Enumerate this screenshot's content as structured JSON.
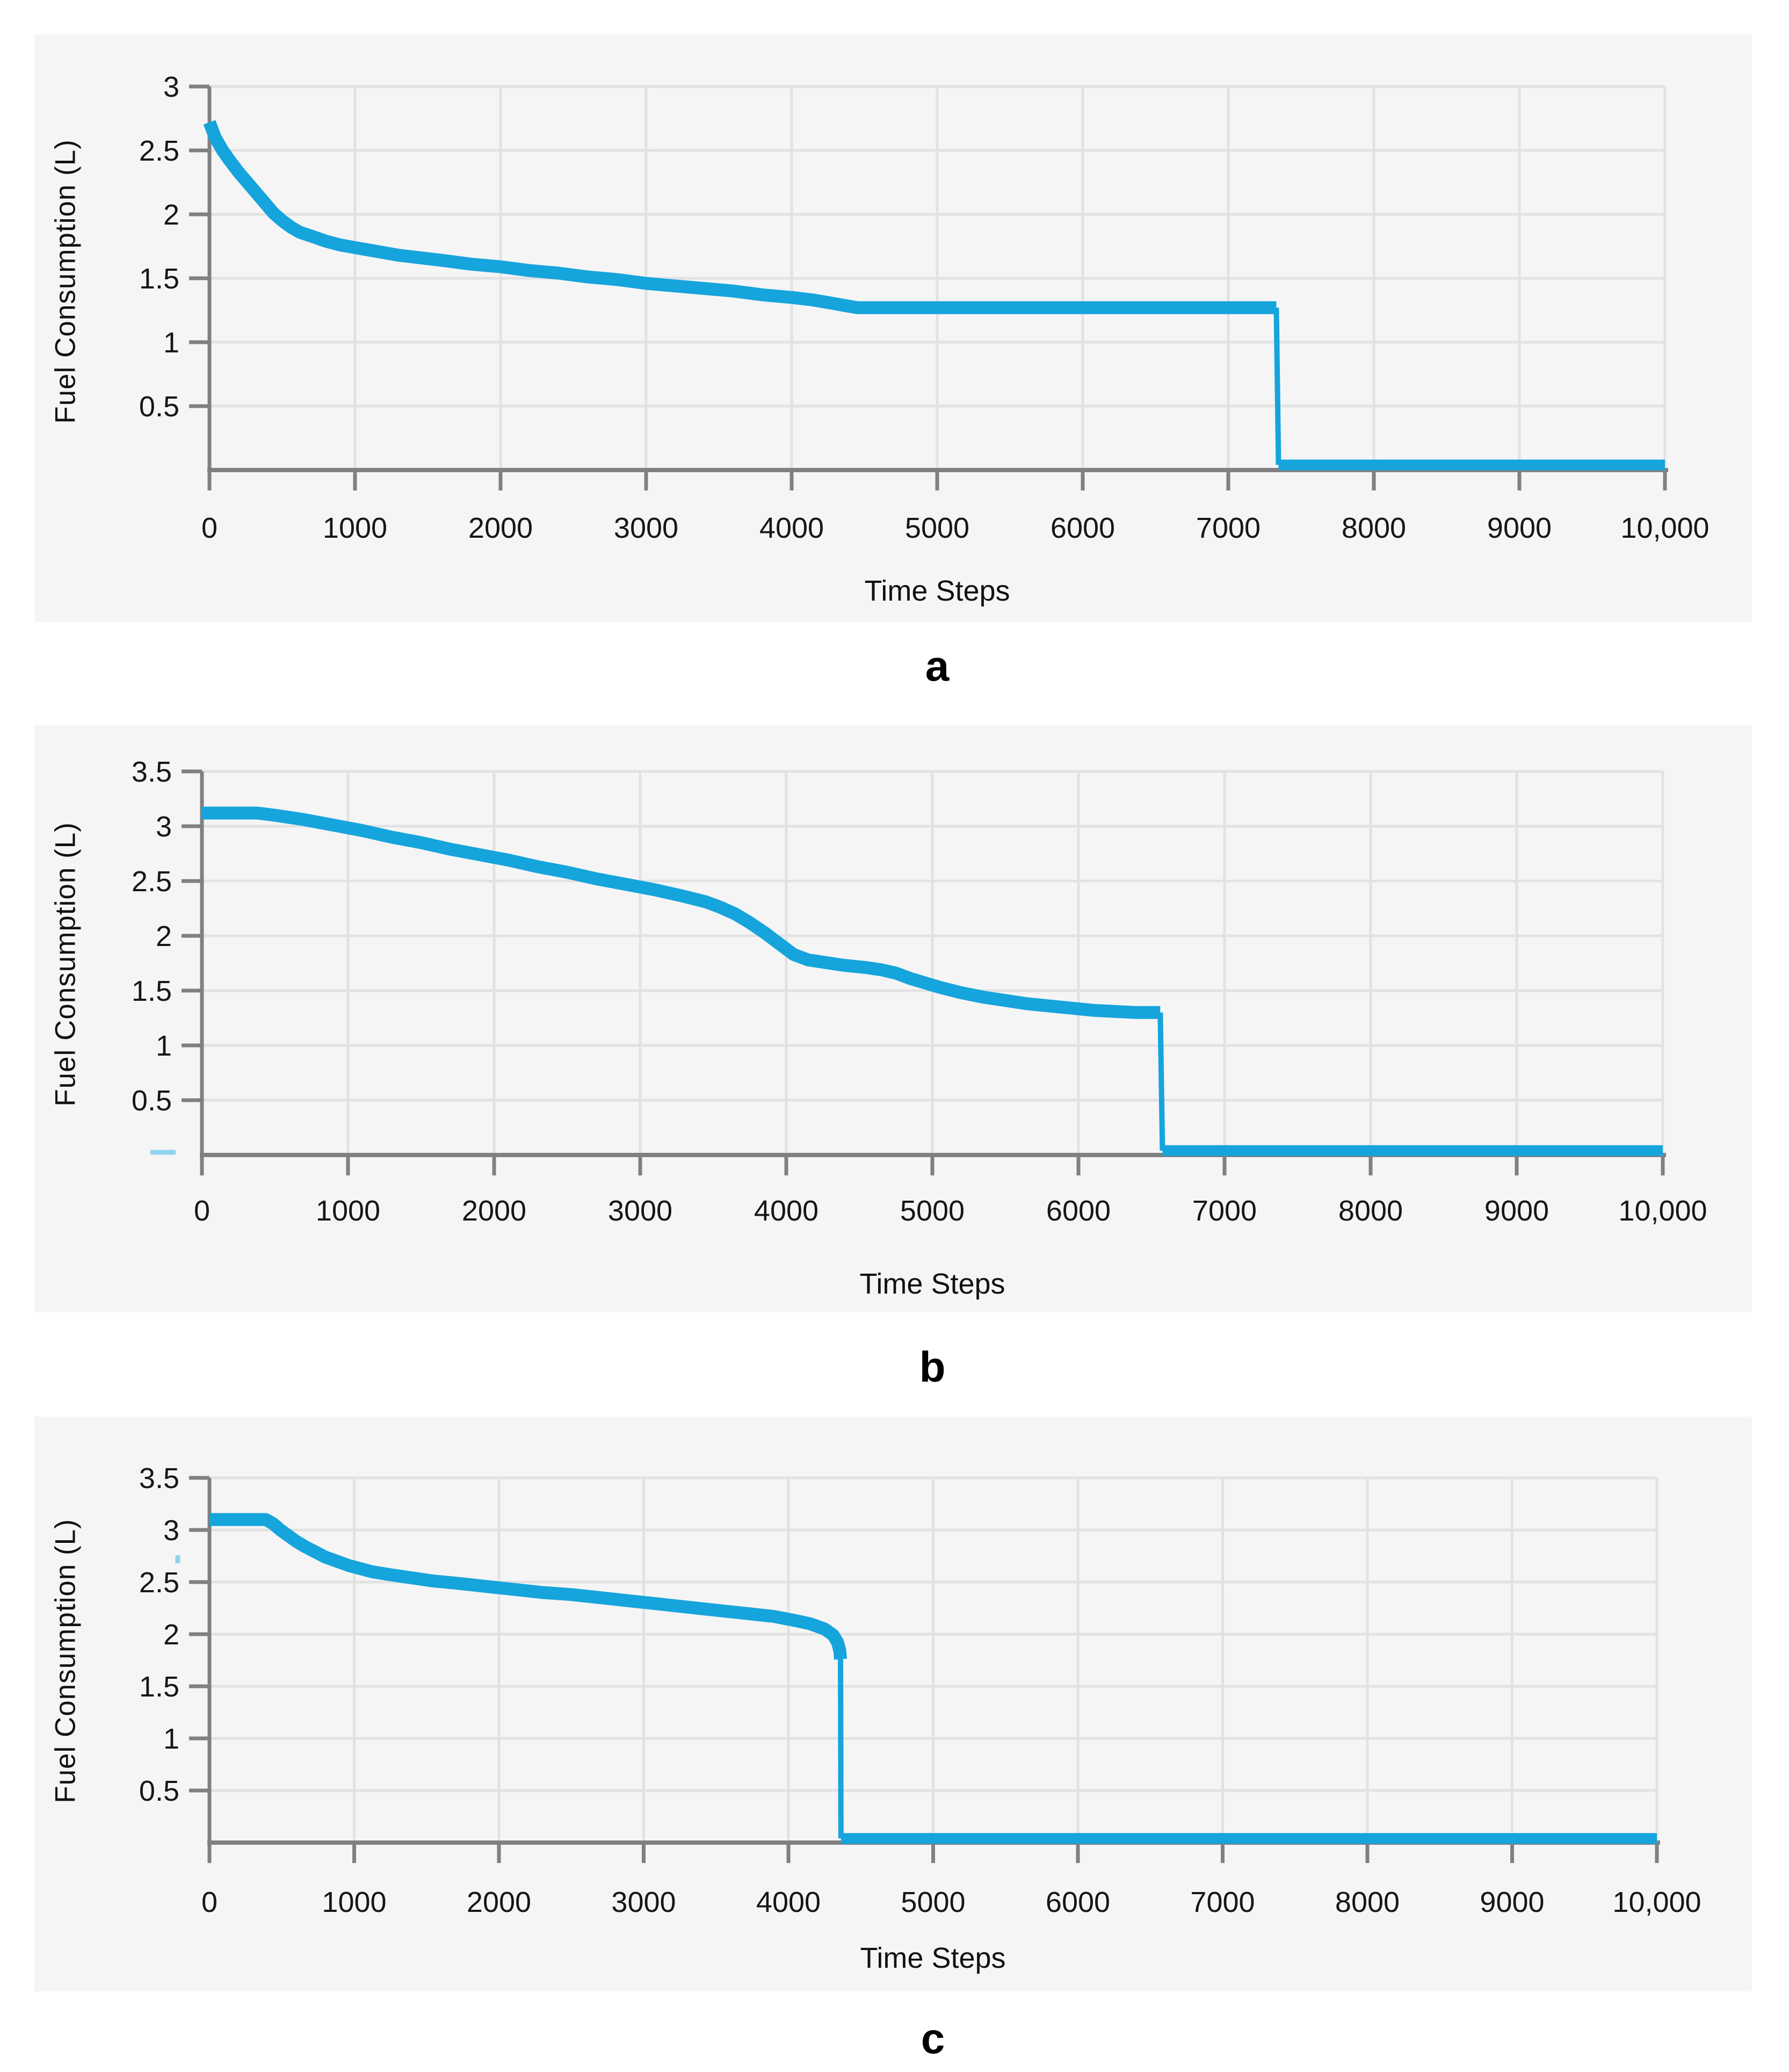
{
  "page": {
    "background": "#ffffff",
    "accent_color": "#16a4dc",
    "panel_background": "#f5f5f6",
    "gridline_color": "#e2e2e2",
    "axis_color": "#808080"
  },
  "chart_data": [
    {
      "type": "line",
      "panel_label": "a",
      "title": "",
      "xlabel": "Time Steps",
      "ylabel": "Fuel Consumption (L)",
      "xlim": [
        0,
        10000
      ],
      "ylim": [
        0,
        3
      ],
      "grid": true,
      "legend": "none",
      "line_color": "#16a4dc",
      "x_ticks": [
        {
          "v": 0,
          "label": "0"
        },
        {
          "v": 1000,
          "label": "1000"
        },
        {
          "v": 2000,
          "label": "2000"
        },
        {
          "v": 3000,
          "label": "3000"
        },
        {
          "v": 4000,
          "label": "4000"
        },
        {
          "v": 5000,
          "label": "5000"
        },
        {
          "v": 6000,
          "label": "6000"
        },
        {
          "v": 7000,
          "label": "7000"
        },
        {
          "v": 8000,
          "label": "8000"
        },
        {
          "v": 9000,
          "label": "9000"
        },
        {
          "v": 10000,
          "label": "10,000"
        }
      ],
      "y_ticks": [
        {
          "v": 0.5,
          "label": "0.5"
        },
        {
          "v": 1,
          "label": "1"
        },
        {
          "v": 1.5,
          "label": "1.5"
        },
        {
          "v": 2,
          "label": "2"
        },
        {
          "v": 2.5,
          "label": "2.5"
        },
        {
          "v": 3,
          "label": "3"
        }
      ],
      "series": [
        {
          "name": "Fuel Consumption",
          "points": [
            [
              0,
              2.72
            ],
            [
              40,
              2.6
            ],
            [
              90,
              2.5
            ],
            [
              140,
              2.42
            ],
            [
              200,
              2.33
            ],
            [
              260,
              2.25
            ],
            [
              320,
              2.17
            ],
            [
              380,
              2.09
            ],
            [
              440,
              2.01
            ],
            [
              500,
              1.95
            ],
            [
              560,
              1.9
            ],
            [
              620,
              1.86
            ],
            [
              700,
              1.83
            ],
            [
              800,
              1.79
            ],
            [
              900,
              1.76
            ],
            [
              1000,
              1.74
            ],
            [
              1150,
              1.71
            ],
            [
              1300,
              1.68
            ],
            [
              1450,
              1.66
            ],
            [
              1600,
              1.64
            ],
            [
              1800,
              1.61
            ],
            [
              2000,
              1.59
            ],
            [
              2200,
              1.56
            ],
            [
              2400,
              1.54
            ],
            [
              2600,
              1.51
            ],
            [
              2800,
              1.49
            ],
            [
              3000,
              1.46
            ],
            [
              3200,
              1.44
            ],
            [
              3400,
              1.42
            ],
            [
              3600,
              1.4
            ],
            [
              3800,
              1.37
            ],
            [
              4000,
              1.35
            ],
            [
              4150,
              1.33
            ],
            [
              4250,
              1.31
            ],
            [
              4350,
              1.29
            ],
            [
              4450,
              1.27
            ],
            [
              7330,
              1.27
            ],
            [
              7345,
              0.04
            ],
            [
              10000,
              0.04
            ]
          ]
        }
      ]
    },
    {
      "type": "line",
      "panel_label": "b",
      "title": "",
      "xlabel": "Time Steps",
      "ylabel": "Fuel Consumption (L)",
      "xlim": [
        0,
        10000
      ],
      "ylim": [
        0,
        3.5
      ],
      "grid": true,
      "legend": "none",
      "line_color": "#16a4dc",
      "x_ticks": [
        {
          "v": 0,
          "label": "0"
        },
        {
          "v": 1000,
          "label": "1000"
        },
        {
          "v": 2000,
          "label": "2000"
        },
        {
          "v": 3000,
          "label": "3000"
        },
        {
          "v": 4000,
          "label": "4000"
        },
        {
          "v": 5000,
          "label": "5000"
        },
        {
          "v": 6000,
          "label": "6000"
        },
        {
          "v": 7000,
          "label": "7000"
        },
        {
          "v": 8000,
          "label": "8000"
        },
        {
          "v": 9000,
          "label": "9000"
        },
        {
          "v": 10000,
          "label": "10,000"
        }
      ],
      "y_ticks": [
        {
          "v": 0.5,
          "label": "0.5"
        },
        {
          "v": 1,
          "label": "1"
        },
        {
          "v": 1.5,
          "label": "1.5"
        },
        {
          "v": 2,
          "label": "2"
        },
        {
          "v": 2.5,
          "label": "2.5"
        },
        {
          "v": 3,
          "label": "3"
        },
        {
          "v": 3.5,
          "label": "3.5"
        }
      ],
      "series": [
        {
          "name": "Fuel Consumption",
          "points": [
            [
              0,
              3.12
            ],
            [
              380,
              3.12
            ],
            [
              500,
              3.1
            ],
            [
              700,
              3.06
            ],
            [
              900,
              3.01
            ],
            [
              1100,
              2.96
            ],
            [
              1300,
              2.9
            ],
            [
              1500,
              2.85
            ],
            [
              1700,
              2.79
            ],
            [
              1900,
              2.74
            ],
            [
              2100,
              2.69
            ],
            [
              2300,
              2.63
            ],
            [
              2500,
              2.58
            ],
            [
              2700,
              2.52
            ],
            [
              2900,
              2.47
            ],
            [
              3100,
              2.42
            ],
            [
              3300,
              2.36
            ],
            [
              3450,
              2.31
            ],
            [
              3550,
              2.26
            ],
            [
              3650,
              2.2
            ],
            [
              3750,
              2.12
            ],
            [
              3850,
              2.03
            ],
            [
              3950,
              1.93
            ],
            [
              4050,
              1.83
            ],
            [
              4150,
              1.78
            ],
            [
              4250,
              1.76
            ],
            [
              4400,
              1.73
            ],
            [
              4550,
              1.71
            ],
            [
              4650,
              1.69
            ],
            [
              4750,
              1.66
            ],
            [
              4850,
              1.61
            ],
            [
              4950,
              1.57
            ],
            [
              5050,
              1.53
            ],
            [
              5200,
              1.48
            ],
            [
              5350,
              1.44
            ],
            [
              5500,
              1.41
            ],
            [
              5650,
              1.38
            ],
            [
              5800,
              1.36
            ],
            [
              5950,
              1.34
            ],
            [
              6100,
              1.32
            ],
            [
              6250,
              1.31
            ],
            [
              6400,
              1.3
            ],
            [
              6560,
              1.3
            ],
            [
              6575,
              0.04
            ],
            [
              10000,
              0.04
            ]
          ]
        }
      ]
    },
    {
      "type": "line",
      "panel_label": "c",
      "title": "",
      "xlabel": "Time Steps",
      "ylabel": "Fuel Consumption (L)",
      "xlim": [
        0,
        10000
      ],
      "ylim": [
        0,
        3.5
      ],
      "grid": true,
      "legend": "none",
      "line_color": "#16a4dc",
      "x_ticks": [
        {
          "v": 0,
          "label": "0"
        },
        {
          "v": 1000,
          "label": "1000"
        },
        {
          "v": 2000,
          "label": "2000"
        },
        {
          "v": 3000,
          "label": "3000"
        },
        {
          "v": 4000,
          "label": "4000"
        },
        {
          "v": 5000,
          "label": "5000"
        },
        {
          "v": 6000,
          "label": "6000"
        },
        {
          "v": 7000,
          "label": "7000"
        },
        {
          "v": 8000,
          "label": "8000"
        },
        {
          "v": 9000,
          "label": "9000"
        },
        {
          "v": 10000,
          "label": "10,000"
        }
      ],
      "y_ticks": [
        {
          "v": 0.5,
          "label": "0.5"
        },
        {
          "v": 1,
          "label": "1"
        },
        {
          "v": 1.5,
          "label": "1.5"
        },
        {
          "v": 2,
          "label": "2"
        },
        {
          "v": 2.5,
          "label": "2.5"
        },
        {
          "v": 3,
          "label": "3"
        },
        {
          "v": 3.5,
          "label": "3.5"
        }
      ],
      "series": [
        {
          "name": "Fuel Consumption",
          "points": [
            [
              0,
              3.1
            ],
            [
              390,
              3.1
            ],
            [
              440,
              3.06
            ],
            [
              490,
              3
            ],
            [
              540,
              2.95
            ],
            [
              600,
              2.89
            ],
            [
              660,
              2.84
            ],
            [
              730,
              2.79
            ],
            [
              800,
              2.74
            ],
            [
              880,
              2.7
            ],
            [
              960,
              2.66
            ],
            [
              1040,
              2.63
            ],
            [
              1120,
              2.6
            ],
            [
              1250,
              2.57
            ],
            [
              1400,
              2.54
            ],
            [
              1550,
              2.51
            ],
            [
              1700,
              2.49
            ],
            [
              1900,
              2.46
            ],
            [
              2100,
              2.43
            ],
            [
              2300,
              2.4
            ],
            [
              2500,
              2.38
            ],
            [
              2700,
              2.35
            ],
            [
              2900,
              2.32
            ],
            [
              3100,
              2.29
            ],
            [
              3300,
              2.26
            ],
            [
              3500,
              2.23
            ],
            [
              3700,
              2.2
            ],
            [
              3900,
              2.17
            ],
            [
              4050,
              2.13
            ],
            [
              4150,
              2.1
            ],
            [
              4250,
              2.05
            ],
            [
              4310,
              1.99
            ],
            [
              4340,
              1.92
            ],
            [
              4355,
              1.84
            ],
            [
              4360,
              1.76
            ],
            [
              4363,
              0.04
            ],
            [
              10000,
              0.04
            ]
          ]
        }
      ]
    }
  ]
}
